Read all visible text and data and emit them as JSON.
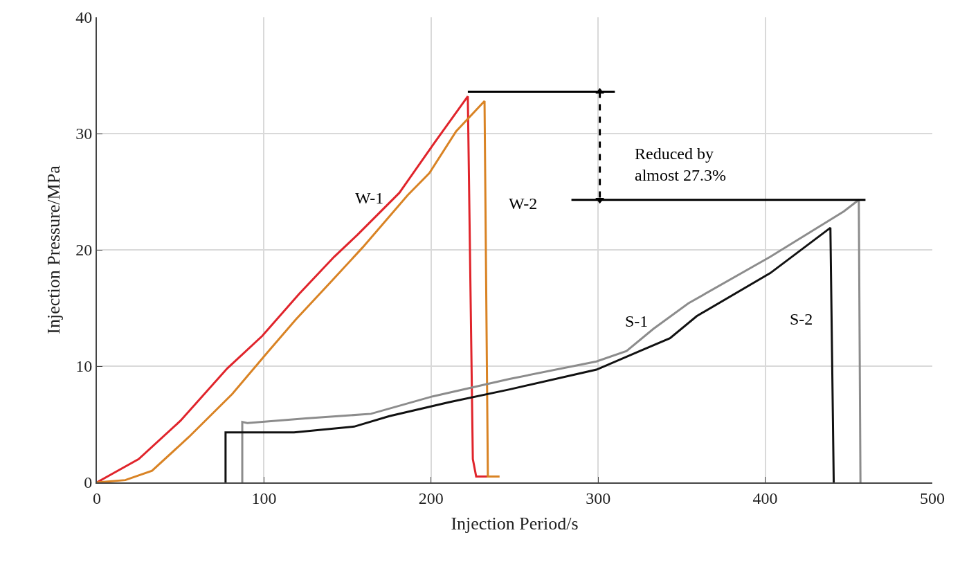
{
  "chart_data": {
    "type": "line",
    "xlabel": "Injection Period/s",
    "ylabel": "Injection Pressure/MPa",
    "xlim": [
      0,
      500
    ],
    "xticks": [
      0,
      100,
      200,
      300,
      400,
      500
    ],
    "ylim": [
      0,
      40
    ],
    "yticks": [
      0,
      10,
      20,
      30,
      40
    ],
    "grid": true,
    "legend": false,
    "marker": "none",
    "series": [
      {
        "name": "W-1",
        "color": "#e0242b",
        "x": [
          0,
          10,
          25,
          50,
          78,
          99,
          121,
          142,
          156,
          181,
          202,
          222,
          225,
          227,
          240
        ],
        "values": [
          0,
          0.8,
          2.0,
          5.3,
          9.8,
          12.6,
          16.2,
          19.4,
          21.3,
          24.9,
          29.2,
          33.2,
          2,
          0.5,
          0.5
        ]
      },
      {
        "name": "W-2",
        "color": "#d98324",
        "x": [
          0,
          17,
          33,
          55,
          81,
          101,
          119,
          141,
          159,
          186,
          199,
          215,
          232,
          234,
          241
        ],
        "values": [
          0,
          0.2,
          1.0,
          3.9,
          7.6,
          11.0,
          14.0,
          17.4,
          20.2,
          24.7,
          26.6,
          30.2,
          32.8,
          0.5,
          0.5
        ]
      },
      {
        "name": "S-1",
        "color": "#8c8c8c",
        "x": [
          87,
          87,
          90,
          125,
          164,
          201,
          247,
          299,
          317,
          333,
          354,
          403,
          447,
          456,
          457
        ],
        "values": [
          0,
          5.2,
          5.1,
          5.5,
          5.9,
          7.4,
          8.9,
          10.4,
          11.3,
          13.2,
          15.4,
          19.4,
          23.3,
          24.3,
          0
        ]
      },
      {
        "name": "S-2",
        "color": "#111111",
        "x": [
          77,
          77,
          90,
          118,
          154,
          175,
          211,
          247,
          299,
          325,
          343,
          359,
          403,
          439,
          441
        ],
        "values": [
          0,
          4.3,
          4.3,
          4.3,
          4.8,
          5.7,
          6.9,
          8.0,
          9.7,
          11.3,
          12.4,
          14.3,
          18.0,
          21.9,
          0
        ]
      },
      {
        "color": "#000000",
        "x": [
          222,
          310
        ],
        "values": [
          33.6,
          33.6
        ]
      },
      {
        "color": "#000000",
        "x": [
          284,
          460
        ],
        "values": [
          24.3,
          24.3
        ]
      },
      {
        "color": "#000000",
        "x": [
          301,
          301
        ],
        "values": [
          33.6,
          24.3
        ],
        "line_style": "dashed",
        "marker": "triangle"
      }
    ],
    "annotations": [
      "Reduced by\nalmost 27.3%"
    ]
  }
}
